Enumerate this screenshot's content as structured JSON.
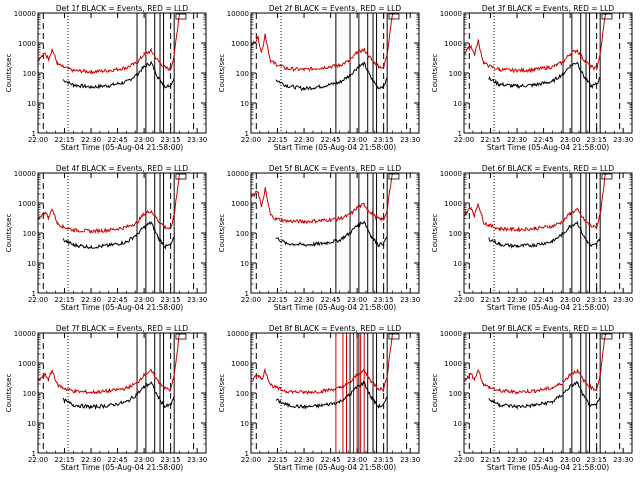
{
  "figure": {
    "ylabel": "Counts/sec",
    "xlabel": "Start Time (05-Aug-04 21:58:00)",
    "x_ticks": [
      "22:00",
      "22:15",
      "22:30",
      "22:45",
      "23:00",
      "23:15",
      "23:30"
    ],
    "y_ticks": [
      "1",
      "10",
      "100",
      "1000",
      "10000"
    ],
    "colors": {
      "events": "#000000",
      "lld": "#cc0000",
      "background": "#ffffff"
    }
  },
  "chart_data": [
    {
      "type": "line",
      "title": "Det 1f BLACK = Events, RED = LLD",
      "xlabel": "Start Time (05-Aug-04 21:58:00)",
      "ylabel": "Counts/sec",
      "ylim": [
        1,
        10000
      ],
      "yscale": "log",
      "x": [
        0,
        4,
        6,
        8,
        11,
        14,
        20,
        30,
        40,
        50,
        56,
        60,
        64,
        68,
        72,
        75,
        77,
        80,
        90
      ],
      "series": [
        {
          "name": "Events",
          "color": "#000000",
          "values": [
            null,
            null,
            null,
            null,
            null,
            60,
            40,
            34,
            38,
            50,
            90,
            160,
            220,
            70,
            35,
            40,
            70,
            null,
            null
          ]
        },
        {
          "name": "LLD",
          "color": "#cc0000",
          "values": [
            270,
            450,
            300,
            620,
            200,
            160,
            120,
            110,
            120,
            150,
            220,
            420,
            550,
            250,
            150,
            130,
            400,
            10000,
            10000
          ]
        }
      ],
      "solid_lines": [
        56,
        61,
        66,
        69,
        71,
        77
      ],
      "dashed_lines": [
        3,
        75,
        88
      ],
      "dotted_lines": [
        17
      ]
    },
    {
      "type": "line",
      "title": "Det 2f BLACK = Events, RED = LLD",
      "xlabel": "Start Time (05-Aug-04 21:58:00)",
      "ylabel": "Counts/sec",
      "ylim": [
        1,
        10000
      ],
      "yscale": "log",
      "x": [
        0,
        4,
        6,
        8,
        11,
        14,
        20,
        30,
        40,
        50,
        56,
        60,
        64,
        68,
        72,
        75,
        77,
        80,
        90
      ],
      "series": [
        {
          "name": "Events",
          "color": "#000000",
          "values": [
            null,
            null,
            null,
            null,
            null,
            60,
            38,
            30,
            36,
            48,
            85,
            150,
            210,
            65,
            32,
            38,
            65,
            null,
            null
          ]
        },
        {
          "name": "LLD",
          "color": "#cc0000",
          "values": [
            800,
            1500,
            500,
            2000,
            250,
            200,
            140,
            130,
            150,
            180,
            260,
            480,
            600,
            280,
            170,
            150,
            450,
            10000,
            10000
          ]
        }
      ],
      "solid_lines": [
        48,
        56,
        61,
        66,
        69,
        71,
        77
      ],
      "dashed_lines": [
        3,
        75,
        88
      ],
      "dotted_lines": [
        17
      ]
    },
    {
      "type": "line",
      "title": "Det 3f BLACK = Events, RED = LLD",
      "xlabel": "Start Time (05-Aug-04 21:58:00)",
      "ylabel": "Counts/sec",
      "ylim": [
        1,
        10000
      ],
      "yscale": "log",
      "x": [
        0,
        4,
        6,
        8,
        11,
        14,
        20,
        30,
        40,
        50,
        56,
        60,
        64,
        68,
        72,
        75,
        77,
        80,
        90
      ],
      "series": [
        {
          "name": "Events",
          "color": "#000000",
          "values": [
            null,
            null,
            null,
            null,
            null,
            65,
            42,
            36,
            40,
            52,
            95,
            170,
            230,
            72,
            36,
            42,
            72,
            null,
            null
          ]
        },
        {
          "name": "LLD",
          "color": "#cc0000",
          "values": [
            450,
            800,
            400,
            1200,
            220,
            170,
            130,
            120,
            130,
            160,
            230,
            440,
            580,
            260,
            160,
            140,
            420,
            10000,
            10000
          ]
        }
      ],
      "solid_lines": [
        56,
        61,
        66,
        69,
        71,
        77
      ],
      "dashed_lines": [
        3,
        75,
        88
      ],
      "dotted_lines": [
        17
      ]
    },
    {
      "type": "line",
      "title": "Det 4f BLACK = Events, RED = LLD",
      "xlabel": "Start Time (05-Aug-04 21:58:00)",
      "ylabel": "Counts/sec",
      "ylim": [
        1,
        10000
      ],
      "yscale": "log",
      "x": [
        0,
        4,
        6,
        8,
        11,
        14,
        20,
        30,
        40,
        50,
        56,
        60,
        64,
        68,
        72,
        75,
        77,
        80,
        90
      ],
      "series": [
        {
          "name": "Events",
          "color": "#000000",
          "values": [
            null,
            null,
            null,
            null,
            null,
            60,
            40,
            34,
            38,
            50,
            90,
            160,
            220,
            70,
            35,
            40,
            70,
            null,
            null
          ]
        },
        {
          "name": "LLD",
          "color": "#cc0000",
          "values": [
            300,
            500,
            320,
            650,
            210,
            165,
            125,
            115,
            125,
            155,
            225,
            430,
            560,
            255,
            155,
            135,
            410,
            10000,
            10000
          ]
        }
      ],
      "solid_lines": [
        56,
        61,
        66,
        69,
        71,
        77
      ],
      "dashed_lines": [
        3,
        75,
        88
      ],
      "dotted_lines": [
        17
      ]
    },
    {
      "type": "line",
      "title": "Det 5f BLACK = Events, RED = LLD",
      "xlabel": "Start Time (05-Aug-04 21:58:00)",
      "ylabel": "Counts/sec",
      "ylim": [
        1,
        10000
      ],
      "yscale": "log",
      "x": [
        0,
        4,
        6,
        8,
        11,
        14,
        20,
        30,
        40,
        50,
        56,
        60,
        64,
        68,
        72,
        75,
        77,
        80,
        90
      ],
      "series": [
        {
          "name": "Events",
          "color": "#000000",
          "values": [
            null,
            null,
            null,
            null,
            null,
            70,
            45,
            40,
            44,
            58,
            100,
            180,
            240,
            78,
            40,
            45,
            78,
            null,
            null
          ]
        },
        {
          "name": "LLD",
          "color": "#cc0000",
          "values": [
            1500,
            2500,
            700,
            3000,
            400,
            300,
            250,
            240,
            260,
            300,
            400,
            700,
            900,
            450,
            300,
            280,
            600,
            10000,
            10000
          ]
        }
      ],
      "solid_lines": [
        48,
        56,
        61,
        66,
        69,
        71,
        77
      ],
      "dashed_lines": [
        3,
        75,
        88
      ],
      "dotted_lines": [
        17
      ]
    },
    {
      "type": "line",
      "title": "Det 6f BLACK = Events, RED = LLD",
      "xlabel": "Start Time (05-Aug-04 21:58:00)",
      "ylabel": "Counts/sec",
      "ylim": [
        1,
        10000
      ],
      "yscale": "log",
      "x": [
        0,
        4,
        6,
        8,
        11,
        14,
        20,
        30,
        40,
        50,
        56,
        60,
        64,
        68,
        72,
        75,
        77,
        80,
        90
      ],
      "series": [
        {
          "name": "Events",
          "color": "#000000",
          "values": [
            null,
            null,
            null,
            null,
            null,
            65,
            42,
            36,
            40,
            52,
            95,
            170,
            230,
            72,
            36,
            42,
            72,
            null,
            null
          ]
        },
        {
          "name": "LLD",
          "color": "#cc0000",
          "values": [
            400,
            700,
            380,
            1000,
            230,
            180,
            140,
            130,
            140,
            170,
            240,
            460,
            600,
            270,
            170,
            150,
            430,
            10000,
            10000
          ]
        }
      ],
      "solid_lines": [
        56,
        61,
        66,
        69,
        71,
        77
      ],
      "dashed_lines": [
        3,
        75,
        88
      ],
      "dotted_lines": [
        17
      ]
    },
    {
      "type": "line",
      "title": "Det 7f BLACK = Events, RED = LLD",
      "xlabel": "Start Time (05-Aug-04 21:58:00)",
      "ylabel": "Counts/sec",
      "ylim": [
        1,
        10000
      ],
      "yscale": "log",
      "x": [
        0,
        4,
        6,
        8,
        11,
        14,
        20,
        30,
        40,
        50,
        56,
        60,
        64,
        68,
        72,
        75,
        77,
        80,
        90
      ],
      "series": [
        {
          "name": "Events",
          "color": "#000000",
          "values": [
            null,
            null,
            null,
            null,
            null,
            60,
            40,
            34,
            38,
            50,
            90,
            160,
            220,
            70,
            35,
            40,
            70,
            null,
            null
          ]
        },
        {
          "name": "LLD",
          "color": "#cc0000",
          "values": [
            250,
            420,
            280,
            580,
            190,
            150,
            115,
            105,
            115,
            145,
            215,
            410,
            540,
            245,
            145,
            125,
            390,
            10000,
            10000
          ]
        }
      ],
      "solid_lines": [
        56,
        61,
        66,
        69,
        71,
        77
      ],
      "dashed_lines": [
        3,
        75,
        88
      ],
      "dotted_lines": [
        17
      ]
    },
    {
      "type": "line",
      "title": "Det 8f BLACK = Events, RED = LLD",
      "xlabel": "Start Time (05-Aug-04 21:58:00)",
      "ylabel": "Counts/sec",
      "ylim": [
        1,
        10000
      ],
      "yscale": "log",
      "x": [
        0,
        4,
        6,
        8,
        11,
        14,
        20,
        30,
        40,
        50,
        56,
        60,
        64,
        68,
        72,
        75,
        77,
        80,
        90
      ],
      "series": [
        {
          "name": "Events",
          "color": "#000000",
          "values": [
            null,
            null,
            null,
            null,
            null,
            60,
            40,
            34,
            38,
            50,
            90,
            160,
            220,
            70,
            35,
            40,
            70,
            null,
            null
          ]
        },
        {
          "name": "LLD",
          "color": "#cc0000",
          "values": [
            250,
            420,
            280,
            580,
            190,
            150,
            115,
            105,
            115,
            145,
            215,
            410,
            540,
            245,
            145,
            125,
            390,
            10000,
            10000
          ]
        }
      ],
      "solid_lines": [
        56,
        61,
        66,
        69,
        71,
        77
      ],
      "dashed_lines": [
        3,
        75,
        88
      ],
      "dotted_lines": [
        17
      ],
      "red_vertical_lines": [
        48,
        52,
        54,
        58,
        60,
        62,
        64
      ]
    },
    {
      "type": "line",
      "title": "Det 9f BLACK = Events, RED = LLD",
      "xlabel": "Start Time (05-Aug-04 21:58:00)",
      "ylabel": "Counts/sec",
      "ylim": [
        1,
        10000
      ],
      "yscale": "log",
      "x": [
        0,
        4,
        6,
        8,
        11,
        14,
        20,
        30,
        40,
        50,
        56,
        60,
        64,
        68,
        72,
        75,
        77,
        80,
        90
      ],
      "series": [
        {
          "name": "Events",
          "color": "#000000",
          "values": [
            null,
            null,
            null,
            null,
            null,
            62,
            41,
            35,
            39,
            51,
            92,
            165,
            225,
            71,
            35,
            41,
            71,
            null,
            null
          ]
        },
        {
          "name": "LLD",
          "color": "#cc0000",
          "values": [
            260,
            430,
            290,
            600,
            195,
            155,
            118,
            108,
            118,
            148,
            218,
            420,
            550,
            250,
            148,
            128,
            400,
            10000,
            10000
          ]
        }
      ],
      "solid_lines": [
        56,
        61,
        66,
        69,
        71,
        77
      ],
      "dashed_lines": [
        3,
        75,
        88
      ],
      "dotted_lines": [
        17
      ]
    }
  ]
}
